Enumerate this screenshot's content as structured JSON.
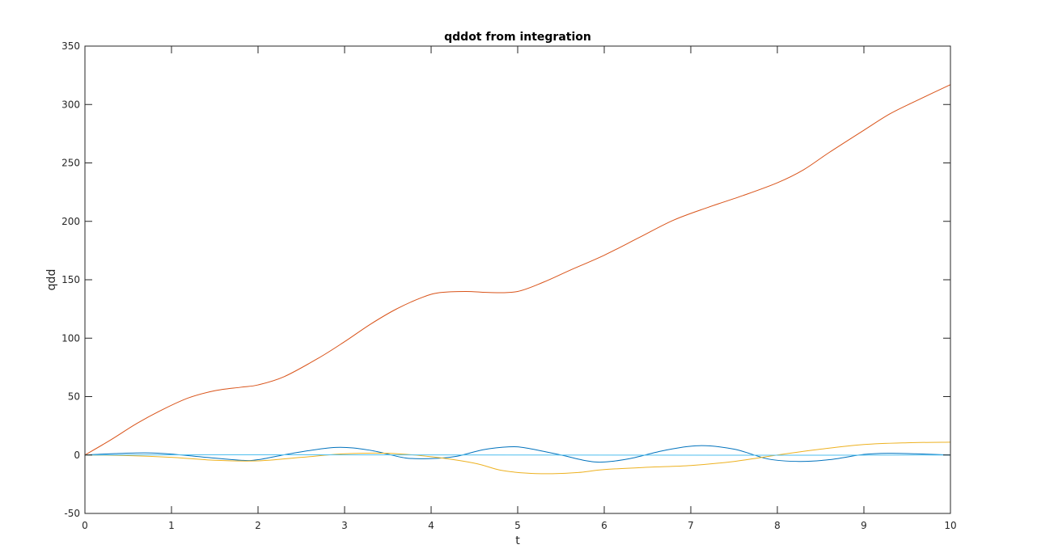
{
  "chart_data": {
    "type": "line",
    "title": "qddot from integration",
    "xlabel": "t",
    "ylabel": "qdd",
    "xlim": [
      0,
      10
    ],
    "ylim": [
      -50,
      350
    ],
    "xticks": [
      0,
      1,
      2,
      3,
      4,
      5,
      6,
      7,
      8,
      9,
      10
    ],
    "yticks": [
      -50,
      0,
      50,
      100,
      150,
      200,
      250,
      300,
      350
    ],
    "grid": false,
    "legend": "none",
    "series": [
      {
        "color": "#0072BD",
        "x": [
          0,
          0.35,
          0.7,
          1.0,
          1.4,
          1.8,
          2.0,
          2.4,
          2.9,
          3.3,
          3.7,
          4.0,
          4.3,
          4.6,
          4.9,
          5.1,
          5.5,
          5.8,
          6.0,
          6.3,
          6.7,
          7.1,
          7.5,
          7.9,
          8.25,
          8.6,
          9.0,
          9.3,
          9.6,
          10.0
        ],
        "y": [
          0,
          1.2,
          1.8,
          0.8,
          -2.0,
          -4.5,
          -4.0,
          1.5,
          6.5,
          4.0,
          -2.5,
          -3.0,
          -1.0,
          4.5,
          7.0,
          6.0,
          0,
          -5.0,
          -6.0,
          -3.0,
          4.0,
          8.0,
          5.0,
          -3.5,
          -5.5,
          -4.0,
          0.5,
          1.5,
          1.0,
          0
        ]
      },
      {
        "color": "#D95319",
        "x": [
          0,
          0.3,
          0.6,
          0.9,
          1.2,
          1.5,
          1.8,
          2.0,
          2.3,
          2.7,
          3.0,
          3.3,
          3.6,
          3.9,
          4.1,
          4.4,
          4.7,
          5.0,
          5.3,
          5.6,
          6.0,
          6.4,
          6.8,
          7.2,
          7.6,
          8.0,
          8.3,
          8.6,
          9.0,
          9.3,
          9.6,
          10.0
        ],
        "y": [
          0,
          13,
          27,
          39,
          49,
          55,
          58,
          60,
          67,
          83,
          97,
          112,
          125,
          135,
          139,
          140,
          139,
          140,
          148,
          158,
          171,
          186,
          201,
          212,
          222,
          233,
          244,
          259,
          278,
          292,
          303,
          317
        ]
      },
      {
        "color": "#EDB120",
        "x": [
          0,
          0.5,
          1.0,
          1.5,
          2.0,
          2.5,
          3.0,
          3.5,
          4.0,
          4.5,
          4.8,
          5.1,
          5.4,
          5.7,
          6.0,
          6.5,
          7.0,
          7.5,
          8.0,
          8.5,
          9.0,
          9.5,
          10.0
        ],
        "y": [
          0,
          -0.5,
          -2.0,
          -4.5,
          -5.0,
          -2.0,
          1.0,
          1.5,
          -1.5,
          -7.0,
          -13.0,
          -15.5,
          -16.0,
          -15.0,
          -12.5,
          -10.5,
          -9.0,
          -5.5,
          0,
          5.0,
          9.0,
          10.5,
          11.0
        ]
      },
      {
        "color": "#4DBEEE",
        "x": [
          0,
          2.5,
          5.0,
          7.5,
          10.0
        ],
        "y": [
          0,
          0.2,
          0,
          -0.2,
          0
        ]
      }
    ]
  }
}
